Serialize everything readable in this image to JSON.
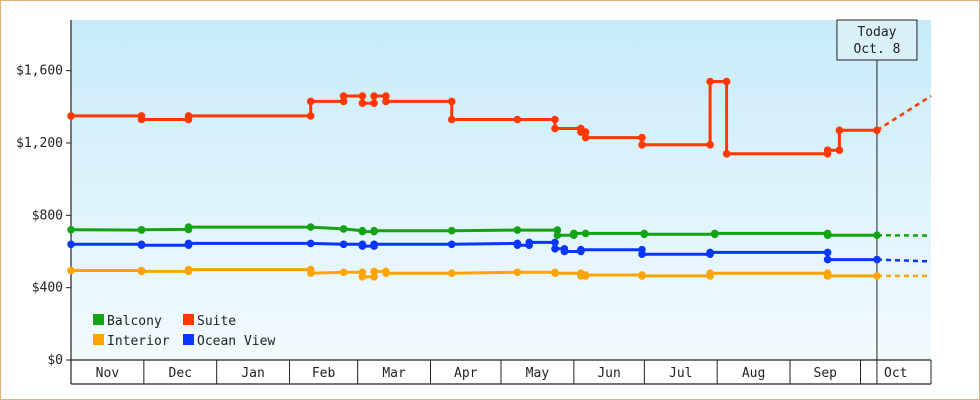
{
  "chart_data": {
    "type": "line",
    "title": "",
    "xlabel": "",
    "ylabel": "",
    "ylim": [
      0,
      1880
    ],
    "y_ticks": [
      0,
      400,
      800,
      1200,
      1600
    ],
    "y_tick_labels": [
      "$0",
      "$400",
      "$800",
      "$1,200",
      "$1,600"
    ],
    "x_domain": [
      "2023-10-31",
      "2024-10-31"
    ],
    "months": [
      {
        "label": "Nov",
        "start": "2023-10-31"
      },
      {
        "label": "Dec",
        "start": "2023-12-01"
      },
      {
        "label": "Jan",
        "start": "2024-01-01"
      },
      {
        "label": "Feb",
        "start": "2024-02-01"
      },
      {
        "label": "Mar",
        "start": "2024-03-01"
      },
      {
        "label": "Apr",
        "start": "2024-04-01"
      },
      {
        "label": "May",
        "start": "2024-05-01"
      },
      {
        "label": "Jun",
        "start": "2024-06-01"
      },
      {
        "label": "Jul",
        "start": "2024-07-01"
      },
      {
        "label": "Aug",
        "start": "2024-08-01"
      },
      {
        "label": "Sep",
        "start": "2024-09-01"
      },
      {
        "label": "Oct",
        "start": "2024-10-01"
      }
    ],
    "today": {
      "date": "2024-10-08",
      "line1": "Today",
      "line2": "Oct. 8"
    },
    "projection_end": "2024-10-31",
    "grid": false,
    "legend_position": "bottom-left",
    "series": [
      {
        "name": "Balcony",
        "color": "#13a313",
        "points": [
          [
            "2023-10-31",
            720
          ],
          [
            "2023-11-30",
            718
          ],
          [
            "2023-11-30",
            720
          ],
          [
            "2023-12-20",
            722
          ],
          [
            "2023-12-20",
            735
          ],
          [
            "2024-02-10",
            735
          ],
          [
            "2024-02-24",
            725
          ],
          [
            "2024-03-03",
            715
          ],
          [
            "2024-03-03",
            710
          ],
          [
            "2024-03-08",
            710
          ],
          [
            "2024-03-08",
            715
          ],
          [
            "2024-04-10",
            715
          ],
          [
            "2024-05-08",
            718
          ],
          [
            "2024-05-25",
            718
          ],
          [
            "2024-05-25",
            690
          ],
          [
            "2024-06-01",
            690
          ],
          [
            "2024-06-01",
            700
          ],
          [
            "2024-06-06",
            700
          ],
          [
            "2024-07-01",
            700
          ],
          [
            "2024-07-01",
            695
          ],
          [
            "2024-07-31",
            695
          ],
          [
            "2024-07-31",
            700
          ],
          [
            "2024-09-17",
            700
          ],
          [
            "2024-09-17",
            690
          ],
          [
            "2024-10-08",
            690
          ]
        ],
        "projection": [
          [
            "2024-10-08",
            690
          ],
          [
            "2024-10-31",
            688
          ]
        ]
      },
      {
        "name": "Suite",
        "color": "#ff3800",
        "points": [
          [
            "2023-10-31",
            1350
          ],
          [
            "2023-11-30",
            1350
          ],
          [
            "2023-11-30",
            1330
          ],
          [
            "2023-12-20",
            1330
          ],
          [
            "2023-12-20",
            1350
          ],
          [
            "2024-02-10",
            1350
          ],
          [
            "2024-02-10",
            1430
          ],
          [
            "2024-02-24",
            1430
          ],
          [
            "2024-02-24",
            1460
          ],
          [
            "2024-03-03",
            1460
          ],
          [
            "2024-03-03",
            1420
          ],
          [
            "2024-03-08",
            1420
          ],
          [
            "2024-03-08",
            1460
          ],
          [
            "2024-03-13",
            1460
          ],
          [
            "2024-03-13",
            1430
          ],
          [
            "2024-04-10",
            1430
          ],
          [
            "2024-04-10",
            1330
          ],
          [
            "2024-05-08",
            1330
          ],
          [
            "2024-05-24",
            1330
          ],
          [
            "2024-05-24",
            1280
          ],
          [
            "2024-06-04",
            1280
          ],
          [
            "2024-06-04",
            1260
          ],
          [
            "2024-06-06",
            1260
          ],
          [
            "2024-06-06",
            1230
          ],
          [
            "2024-06-30",
            1230
          ],
          [
            "2024-06-30",
            1190
          ],
          [
            "2024-07-29",
            1190
          ],
          [
            "2024-07-29",
            1540
          ],
          [
            "2024-08-05",
            1540
          ],
          [
            "2024-08-05",
            1140
          ],
          [
            "2024-09-17",
            1140
          ],
          [
            "2024-09-17",
            1160
          ],
          [
            "2024-09-22",
            1160
          ],
          [
            "2024-09-22",
            1270
          ],
          [
            "2024-10-08",
            1270
          ]
        ],
        "projection": [
          [
            "2024-10-08",
            1270
          ],
          [
            "2024-10-31",
            1460
          ]
        ]
      },
      {
        "name": "Interior",
        "color": "#ffa405",
        "points": [
          [
            "2023-10-31",
            495
          ],
          [
            "2023-11-30",
            495
          ],
          [
            "2023-11-30",
            490
          ],
          [
            "2023-12-20",
            490
          ],
          [
            "2023-12-20",
            500
          ],
          [
            "2024-02-10",
            500
          ],
          [
            "2024-02-10",
            480
          ],
          [
            "2024-02-24",
            485
          ],
          [
            "2024-03-03",
            485
          ],
          [
            "2024-03-03",
            460
          ],
          [
            "2024-03-08",
            460
          ],
          [
            "2024-03-08",
            490
          ],
          [
            "2024-03-13",
            490
          ],
          [
            "2024-03-13",
            480
          ],
          [
            "2024-04-10",
            480
          ],
          [
            "2024-05-08",
            485
          ],
          [
            "2024-05-24",
            485
          ],
          [
            "2024-05-24",
            480
          ],
          [
            "2024-06-04",
            480
          ],
          [
            "2024-06-04",
            465
          ],
          [
            "2024-06-06",
            465
          ],
          [
            "2024-06-06",
            470
          ],
          [
            "2024-06-30",
            470
          ],
          [
            "2024-06-30",
            465
          ],
          [
            "2024-07-29",
            465
          ],
          [
            "2024-07-29",
            480
          ],
          [
            "2024-09-17",
            480
          ],
          [
            "2024-09-17",
            465
          ],
          [
            "2024-10-08",
            465
          ]
        ],
        "projection": [
          [
            "2024-10-08",
            465
          ],
          [
            "2024-10-31",
            465
          ]
        ]
      },
      {
        "name": "Ocean View",
        "color": "#0836ff",
        "points": [
          [
            "2023-10-31",
            640
          ],
          [
            "2023-11-30",
            640
          ],
          [
            "2023-11-30",
            635
          ],
          [
            "2023-12-20",
            635
          ],
          [
            "2023-12-20",
            645
          ],
          [
            "2024-02-10",
            645
          ],
          [
            "2024-02-24",
            640
          ],
          [
            "2024-03-03",
            640
          ],
          [
            "2024-03-03",
            630
          ],
          [
            "2024-03-08",
            630
          ],
          [
            "2024-03-08",
            640
          ],
          [
            "2024-04-10",
            640
          ],
          [
            "2024-05-08",
            645
          ],
          [
            "2024-05-08",
            635
          ],
          [
            "2024-05-13",
            635
          ],
          [
            "2024-05-13",
            650
          ],
          [
            "2024-05-24",
            650
          ],
          [
            "2024-05-24",
            615
          ],
          [
            "2024-05-28",
            615
          ],
          [
            "2024-05-28",
            600
          ],
          [
            "2024-06-04",
            600
          ],
          [
            "2024-06-04",
            610
          ],
          [
            "2024-06-30",
            610
          ],
          [
            "2024-06-30",
            585
          ],
          [
            "2024-07-29",
            585
          ],
          [
            "2024-07-29",
            595
          ],
          [
            "2024-09-17",
            595
          ],
          [
            "2024-09-17",
            555
          ],
          [
            "2024-10-08",
            555
          ]
        ],
        "projection": [
          [
            "2024-10-08",
            555
          ],
          [
            "2024-10-31",
            545
          ]
        ]
      }
    ],
    "legend": [
      {
        "name": "Balcony",
        "color": "#13a313"
      },
      {
        "name": "Suite",
        "color": "#ff3800"
      },
      {
        "name": "Interior",
        "color": "#ffa405"
      },
      {
        "name": "Ocean View",
        "color": "#0836ff"
      }
    ]
  }
}
